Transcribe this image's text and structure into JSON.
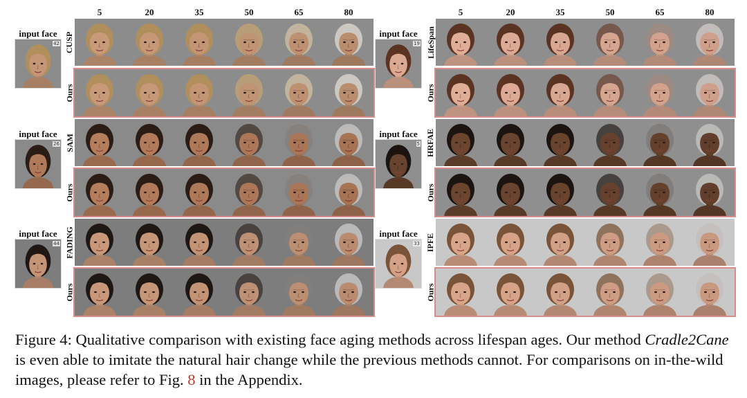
{
  "ages": [
    "5",
    "20",
    "35",
    "50",
    "65",
    "80"
  ],
  "input_label": "input face",
  "ours_label": "Ours",
  "groups": [
    {
      "method": "CUSP",
      "input_age": "42",
      "skin": "#c99a79",
      "hair": "#b08f5c",
      "bg": "#8c8c8c"
    },
    {
      "method": "LifeSpan",
      "input_age": "19",
      "skin": "#e0ad96",
      "hair": "#5a3322",
      "bg": "#8e8e8e"
    },
    {
      "method": "SAM",
      "input_age": "26",
      "skin": "#b47d5c",
      "hair": "#2b1d16",
      "bg": "#8a8a8a"
    },
    {
      "method": "HRFAE",
      "input_age": "5",
      "skin": "#6b4530",
      "hair": "#1b1411",
      "bg": "#8f8f8f"
    },
    {
      "method": "FADING",
      "input_age": "44",
      "skin": "#c9987a",
      "hair": "#1e1714",
      "bg": "#7d7d7d"
    },
    {
      "method": "IPFE",
      "input_age": "33",
      "skin": "#d9a58a",
      "hair": "#7a5438",
      "bg": "#c8c8c8"
    }
  ],
  "caption": {
    "prefix": "Figure 4: Qualitative comparison with existing face aging methods across lifespan ages. Our method ",
    "method_name": "Cradle2Cane",
    "middle": " is even able to imitate the natural hair change while the previous methods cannot. For comparisons on in-the-wild images, please refer to Fig. ",
    "fig_ref": "8",
    "suffix": " in the Appendix."
  }
}
